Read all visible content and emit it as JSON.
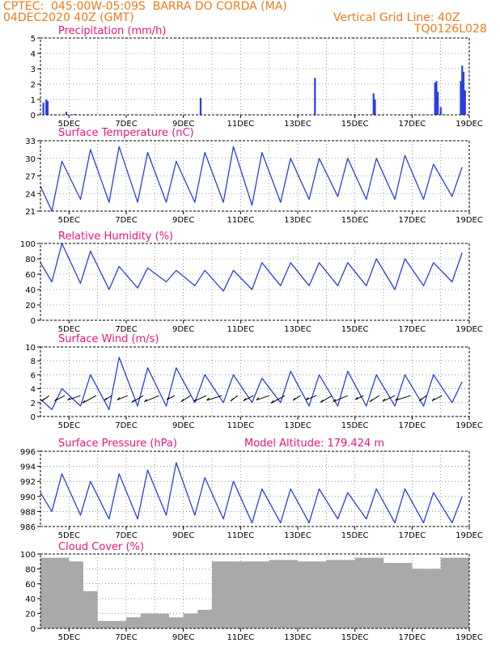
{
  "header": {
    "line1": "CPTEC:  045:00W-05:09S  BARRA DO CORDA (MA)",
    "line2": "04DEC2020 40Z (GMT)",
    "grid_note": "Vertical Grid Line: 40Z",
    "code": "TQ0126L028"
  },
  "colors": {
    "series": "#2a3fe0",
    "cloud": "#a9a9a9",
    "title": "#e8157e",
    "header": "#f07a1a"
  },
  "x_axis": {
    "labels": [
      "5DEC",
      "7DEC",
      "9DEC",
      "11DEC",
      "13DEC",
      "15DEC",
      "17DEC",
      "19DEC"
    ],
    "label_days": [
      5,
      7,
      9,
      11,
      13,
      15,
      17,
      19
    ],
    "range": [
      4,
      19
    ]
  },
  "chart_data": [
    {
      "type": "bar",
      "title": "Precipitation (mm/h)",
      "ylim": [
        0,
        5
      ],
      "yticks": [
        0,
        1,
        2,
        3,
        4,
        5
      ],
      "x": [
        4.1,
        4.2,
        4.25,
        4.9,
        5.2,
        9.6,
        13.6,
        15.65,
        15.7,
        17.8,
        17.85,
        17.9,
        18.0,
        18.7,
        18.75,
        18.8,
        18.85
      ],
      "values": [
        0.8,
        1.0,
        0.9,
        0.2,
        0.05,
        1.1,
        2.4,
        1.4,
        1.0,
        2.1,
        2.2,
        1.5,
        0.5,
        2.2,
        3.2,
        2.8,
        1.6
      ]
    },
    {
      "type": "line",
      "title": "Surface Temperature (nC)",
      "ylim": [
        21,
        33
      ],
      "yticks": [
        21,
        24,
        27,
        30,
        33
      ],
      "daily_min": [
        21,
        23,
        22.5,
        22.5,
        22.5,
        22.5,
        22.5,
        22,
        22.5,
        23,
        23.5,
        23,
        23,
        23,
        23.5
      ],
      "daily_max": [
        29.5,
        31.5,
        32,
        31,
        29.5,
        31,
        32,
        31,
        30,
        30,
        30,
        30,
        30.5,
        29,
        28.5
      ]
    },
    {
      "type": "line",
      "title": "Relative Humidity (%)",
      "ylim": [
        0,
        100
      ],
      "yticks": [
        0,
        20,
        40,
        60,
        80,
        100
      ],
      "daily_max": [
        100,
        90,
        70,
        68,
        65,
        65,
        65,
        75,
        75,
        75,
        75,
        80,
        80,
        75,
        88
      ],
      "daily_min": [
        50,
        48,
        40,
        42,
        50,
        45,
        38,
        40,
        45,
        45,
        45,
        45,
        40,
        45,
        50
      ]
    },
    {
      "type": "line",
      "title": "Surface Wind (m/s)",
      "ylim": [
        0,
        10
      ],
      "yticks": [
        0,
        2,
        4,
        6,
        8,
        10
      ],
      "daily_max": [
        4,
        6,
        8.5,
        7,
        7,
        6,
        6,
        5.5,
        6.5,
        6,
        6.5,
        6,
        6,
        6,
        5
      ],
      "daily_min": [
        1,
        1.5,
        1,
        1.5,
        1.5,
        2,
        2,
        2,
        2,
        1.5,
        1.5,
        1.5,
        1.5,
        1.5,
        2
      ]
    },
    {
      "type": "line",
      "title": "Surface Pressure (hPa)",
      "subtitle": "Model Altitude: 179.424 m",
      "ylim": [
        986,
        996
      ],
      "yticks": [
        986,
        988,
        990,
        992,
        994,
        996
      ],
      "daily_max": [
        993,
        992,
        993,
        993.5,
        994.5,
        992.5,
        992,
        991,
        991,
        991,
        990.5,
        991,
        991,
        990.5,
        990
      ],
      "daily_min": [
        988,
        987.5,
        987,
        987,
        987.5,
        987.5,
        987,
        986.5,
        986.5,
        986.5,
        987,
        987,
        986.5,
        986.5,
        986.5
      ]
    },
    {
      "type": "bar",
      "title": "Cloud Cover (%)",
      "ylim": [
        0,
        100
      ],
      "yticks": [
        0,
        20,
        40,
        60,
        80,
        100
      ],
      "x": [
        4,
        5,
        5.5,
        6,
        6.5,
        7,
        7.5,
        8,
        8.5,
        9,
        9.5,
        10,
        11,
        12,
        13,
        14,
        15,
        16,
        17,
        18,
        19
      ],
      "values": [
        95,
        90,
        50,
        10,
        10,
        15,
        20,
        20,
        15,
        20,
        25,
        90,
        90,
        92,
        90,
        92,
        95,
        88,
        80,
        95,
        92
      ]
    }
  ]
}
